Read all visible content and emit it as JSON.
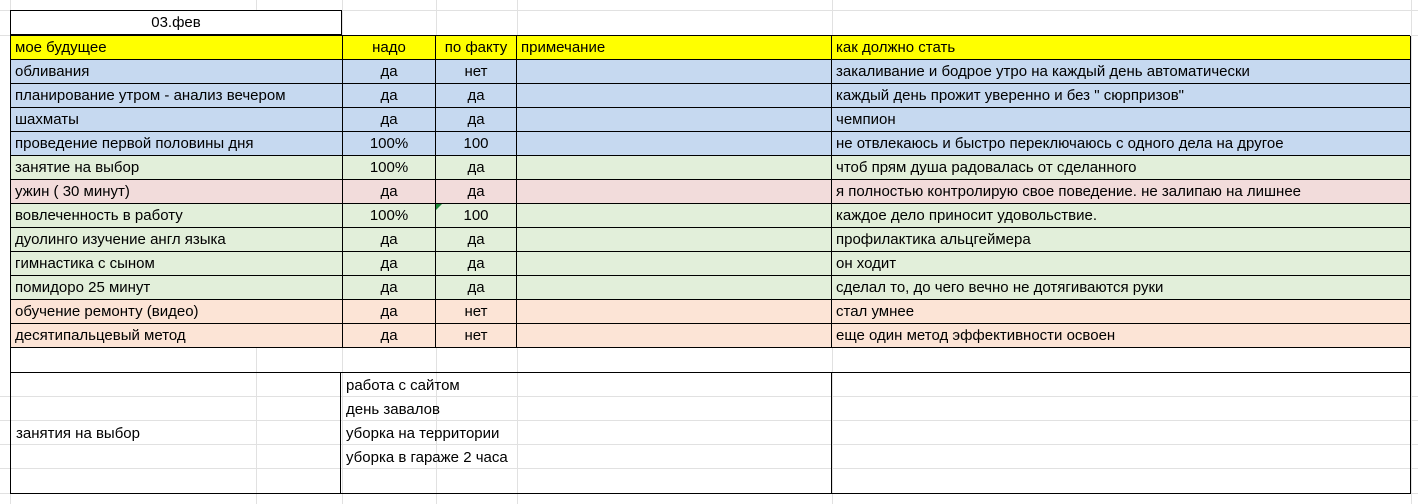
{
  "date": "03.фев",
  "headers": {
    "future": "мое будущее",
    "need": "надо",
    "fact": "по факту",
    "note": "примечание",
    "should": "как должно стать"
  },
  "colors": {
    "header_yellow": "#ffff00",
    "blue": "#c6d9f0",
    "green": "#e2efda",
    "pink": "#f2dcdb",
    "peach": "#fce4d6"
  },
  "rows": [
    {
      "future": "обливания",
      "need": "да",
      "fact": "нет",
      "note": "",
      "should": "закаливание и бодрое утро на каждый день  автоматически",
      "color": "blue"
    },
    {
      "future": "планирование утром - анализ вечером",
      "need": "да",
      "fact": "да",
      "note": "",
      "should": "каждый день прожит уверенно и без  \" сюрпризов\"",
      "color": "blue"
    },
    {
      "future": "шахматы",
      "need": "да",
      "fact": "да",
      "note": "",
      "should": "чемпион",
      "color": "blue"
    },
    {
      "future": "проведение первой половины дня",
      "need": "100%",
      "fact": "100",
      "note": "",
      "should": "не отвлекаюсь и быстро переключаюсь с одного дела на другое",
      "color": "blue"
    },
    {
      "future": "занятие на выбор",
      "need": "100%",
      "fact": "да",
      "note": "",
      "should": "чтоб  прям душа радовалась от сделанного",
      "color": "green"
    },
    {
      "future": "ужин  ( 30 минут)",
      "need": "да",
      "fact": "да",
      "note": "",
      "should": "я полностью контролирую свое поведение. не залипаю на лишнее",
      "color": "pink"
    },
    {
      "future": "вовлеченность в работу",
      "need": "100%",
      "fact": "100",
      "note": "",
      "should": "каждое дело приносит удовольствие.",
      "color": "green"
    },
    {
      "future": "дуолинго изучение англ языка",
      "need": "да",
      "fact": "да",
      "note": "",
      "should": "профилактика альцгеймера",
      "color": "green"
    },
    {
      "future": "гимнастика с сыном",
      "need": "да",
      "fact": "да",
      "note": "",
      "should": "он ходит",
      "color": "green"
    },
    {
      "future": "помидоро  25 минут",
      "need": "да",
      "fact": "да",
      "note": "",
      "should": "сделал то, до чего вечно не дотягиваются руки",
      "color": "green"
    },
    {
      "future": "обучение ремонту (видео)",
      "need": "да",
      "fact": "нет",
      "note": "",
      "should": "стал умнее",
      "color": "peach"
    },
    {
      "future": "десятипальцевый метод",
      "need": "да",
      "fact": "нет",
      "note": "",
      "should": "еще один метод эффективности освоен",
      "color": "peach"
    }
  ],
  "choice": {
    "label": "занятия на выбор",
    "items": [
      "работа с сайтом",
      "день завалов",
      "уборка на территории",
      "уборка в гараже   2 часа"
    ]
  }
}
